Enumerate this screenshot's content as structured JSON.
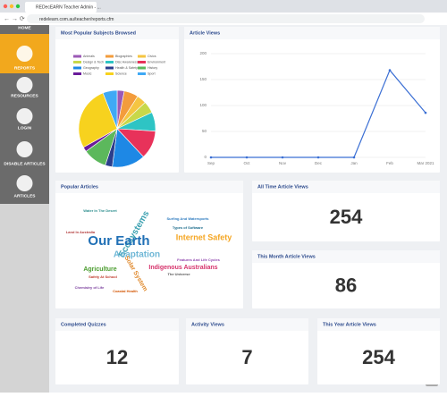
{
  "browser": {
    "tab_title": "REDecEARN Teacher Admin - ...",
    "url": "redelearn.com.au/teacher/reports.cfm"
  },
  "sidebar": {
    "items": [
      "HOME",
      "REPORTS",
      "RESOURCES",
      "LOGIN",
      "DISABLE ARTICLES",
      "ARTICLES"
    ]
  },
  "chart_data": [
    {
      "type": "pie",
      "title": "Most Popular Subjects Browsed",
      "categories": [
        "Animals",
        "Biographies",
        "Civics",
        "Design & Tech",
        "Disc Awareness",
        "Environment",
        "Geography",
        "Health & Safety",
        "History",
        "Music",
        "Science",
        "Sport"
      ],
      "values": [
        3,
        6,
        4,
        5,
        8,
        12,
        14,
        3,
        10,
        2,
        27,
        6
      ],
      "colors": [
        "#9b59b6",
        "#f39c3c",
        "#f5c542",
        "#c8d84a",
        "#2ec4c4",
        "#e8325a",
        "#1e88e5",
        "#2c3e8c",
        "#5cb85c",
        "#6a1b9a",
        "#f7d21e",
        "#3fa9f5"
      ]
    },
    {
      "type": "line",
      "title": "Article Views",
      "categories": [
        "Sep",
        "Oct",
        "Nov",
        "Dec",
        "Jan",
        "Feb",
        "Mar 2021"
      ],
      "values": [
        0,
        0,
        0,
        0,
        0,
        168,
        86
      ],
      "color": "#3b6fd4",
      "ylim": [
        0,
        200
      ],
      "yticks": [
        0,
        50,
        100,
        150,
        200
      ],
      "grid": true
    }
  ],
  "popular_articles": {
    "title": "Popular Articles",
    "words": [
      "Water In The Desert",
      "Ecosystems",
      "Internet Safety",
      "Our Earth",
      "Adaptation",
      "Types of Software",
      "Indigenous Australians",
      "Agriculture",
      "Solar System",
      "Land In Australia",
      "Features And Life Cycles",
      "Surfing And Watersports",
      "Chemistry of Life",
      "Safety At School",
      "The Universe",
      "Coastal Health"
    ]
  },
  "stats": [
    {
      "title": "All Time Article Views",
      "value": "254"
    },
    {
      "title": "This Month Article Views",
      "value": "86"
    },
    {
      "title": "Completed Quizzes",
      "value": "12"
    },
    {
      "title": "Activity Views",
      "value": "7"
    },
    {
      "title": "This Year Article Views",
      "value": "254"
    }
  ]
}
